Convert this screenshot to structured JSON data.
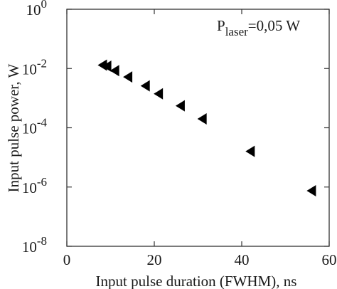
{
  "chart_data": {
    "type": "scatter",
    "xlabel": "Input pulse duration (FWHM), ns",
    "ylabel": "Input pulse power, W",
    "xlim": [
      0,
      60
    ],
    "ylim": [
      1e-08,
      1
    ],
    "yscale": "log",
    "grid": false,
    "marker": "left-pointing triangle",
    "marker_color": "#000000",
    "xticks": [
      {
        "value": 0,
        "label": "0"
      },
      {
        "value": 20,
        "label": "20"
      },
      {
        "value": 40,
        "label": "40"
      },
      {
        "value": 60,
        "label": "60"
      }
    ],
    "yticks": [
      {
        "value": 1e-08,
        "base": "10",
        "exp": "-8"
      },
      {
        "value": 1e-06,
        "base": "10",
        "exp": "-6"
      },
      {
        "value": 0.0001,
        "base": "10",
        "exp": "-4"
      },
      {
        "value": 0.01,
        "base": "10",
        "exp": "-2"
      },
      {
        "value": 1,
        "base": "10",
        "exp": "0"
      }
    ],
    "annotation": {
      "main": "P",
      "sub": "laser",
      "rest": "=0,05 W"
    },
    "series": [
      {
        "points": [
          {
            "x": 8.2,
            "y": 0.013
          },
          {
            "x": 9.2,
            "y": 0.012
          },
          {
            "x": 11.0,
            "y": 0.0085
          },
          {
            "x": 14.0,
            "y": 0.0052
          },
          {
            "x": 18.0,
            "y": 0.0026
          },
          {
            "x": 21.0,
            "y": 0.0014
          },
          {
            "x": 26.0,
            "y": 0.00055
          },
          {
            "x": 31.0,
            "y": 0.0002
          },
          {
            "x": 42.0,
            "y": 1.6e-05
          },
          {
            "x": 56.0,
            "y": 7.5e-07
          }
        ]
      }
    ]
  }
}
